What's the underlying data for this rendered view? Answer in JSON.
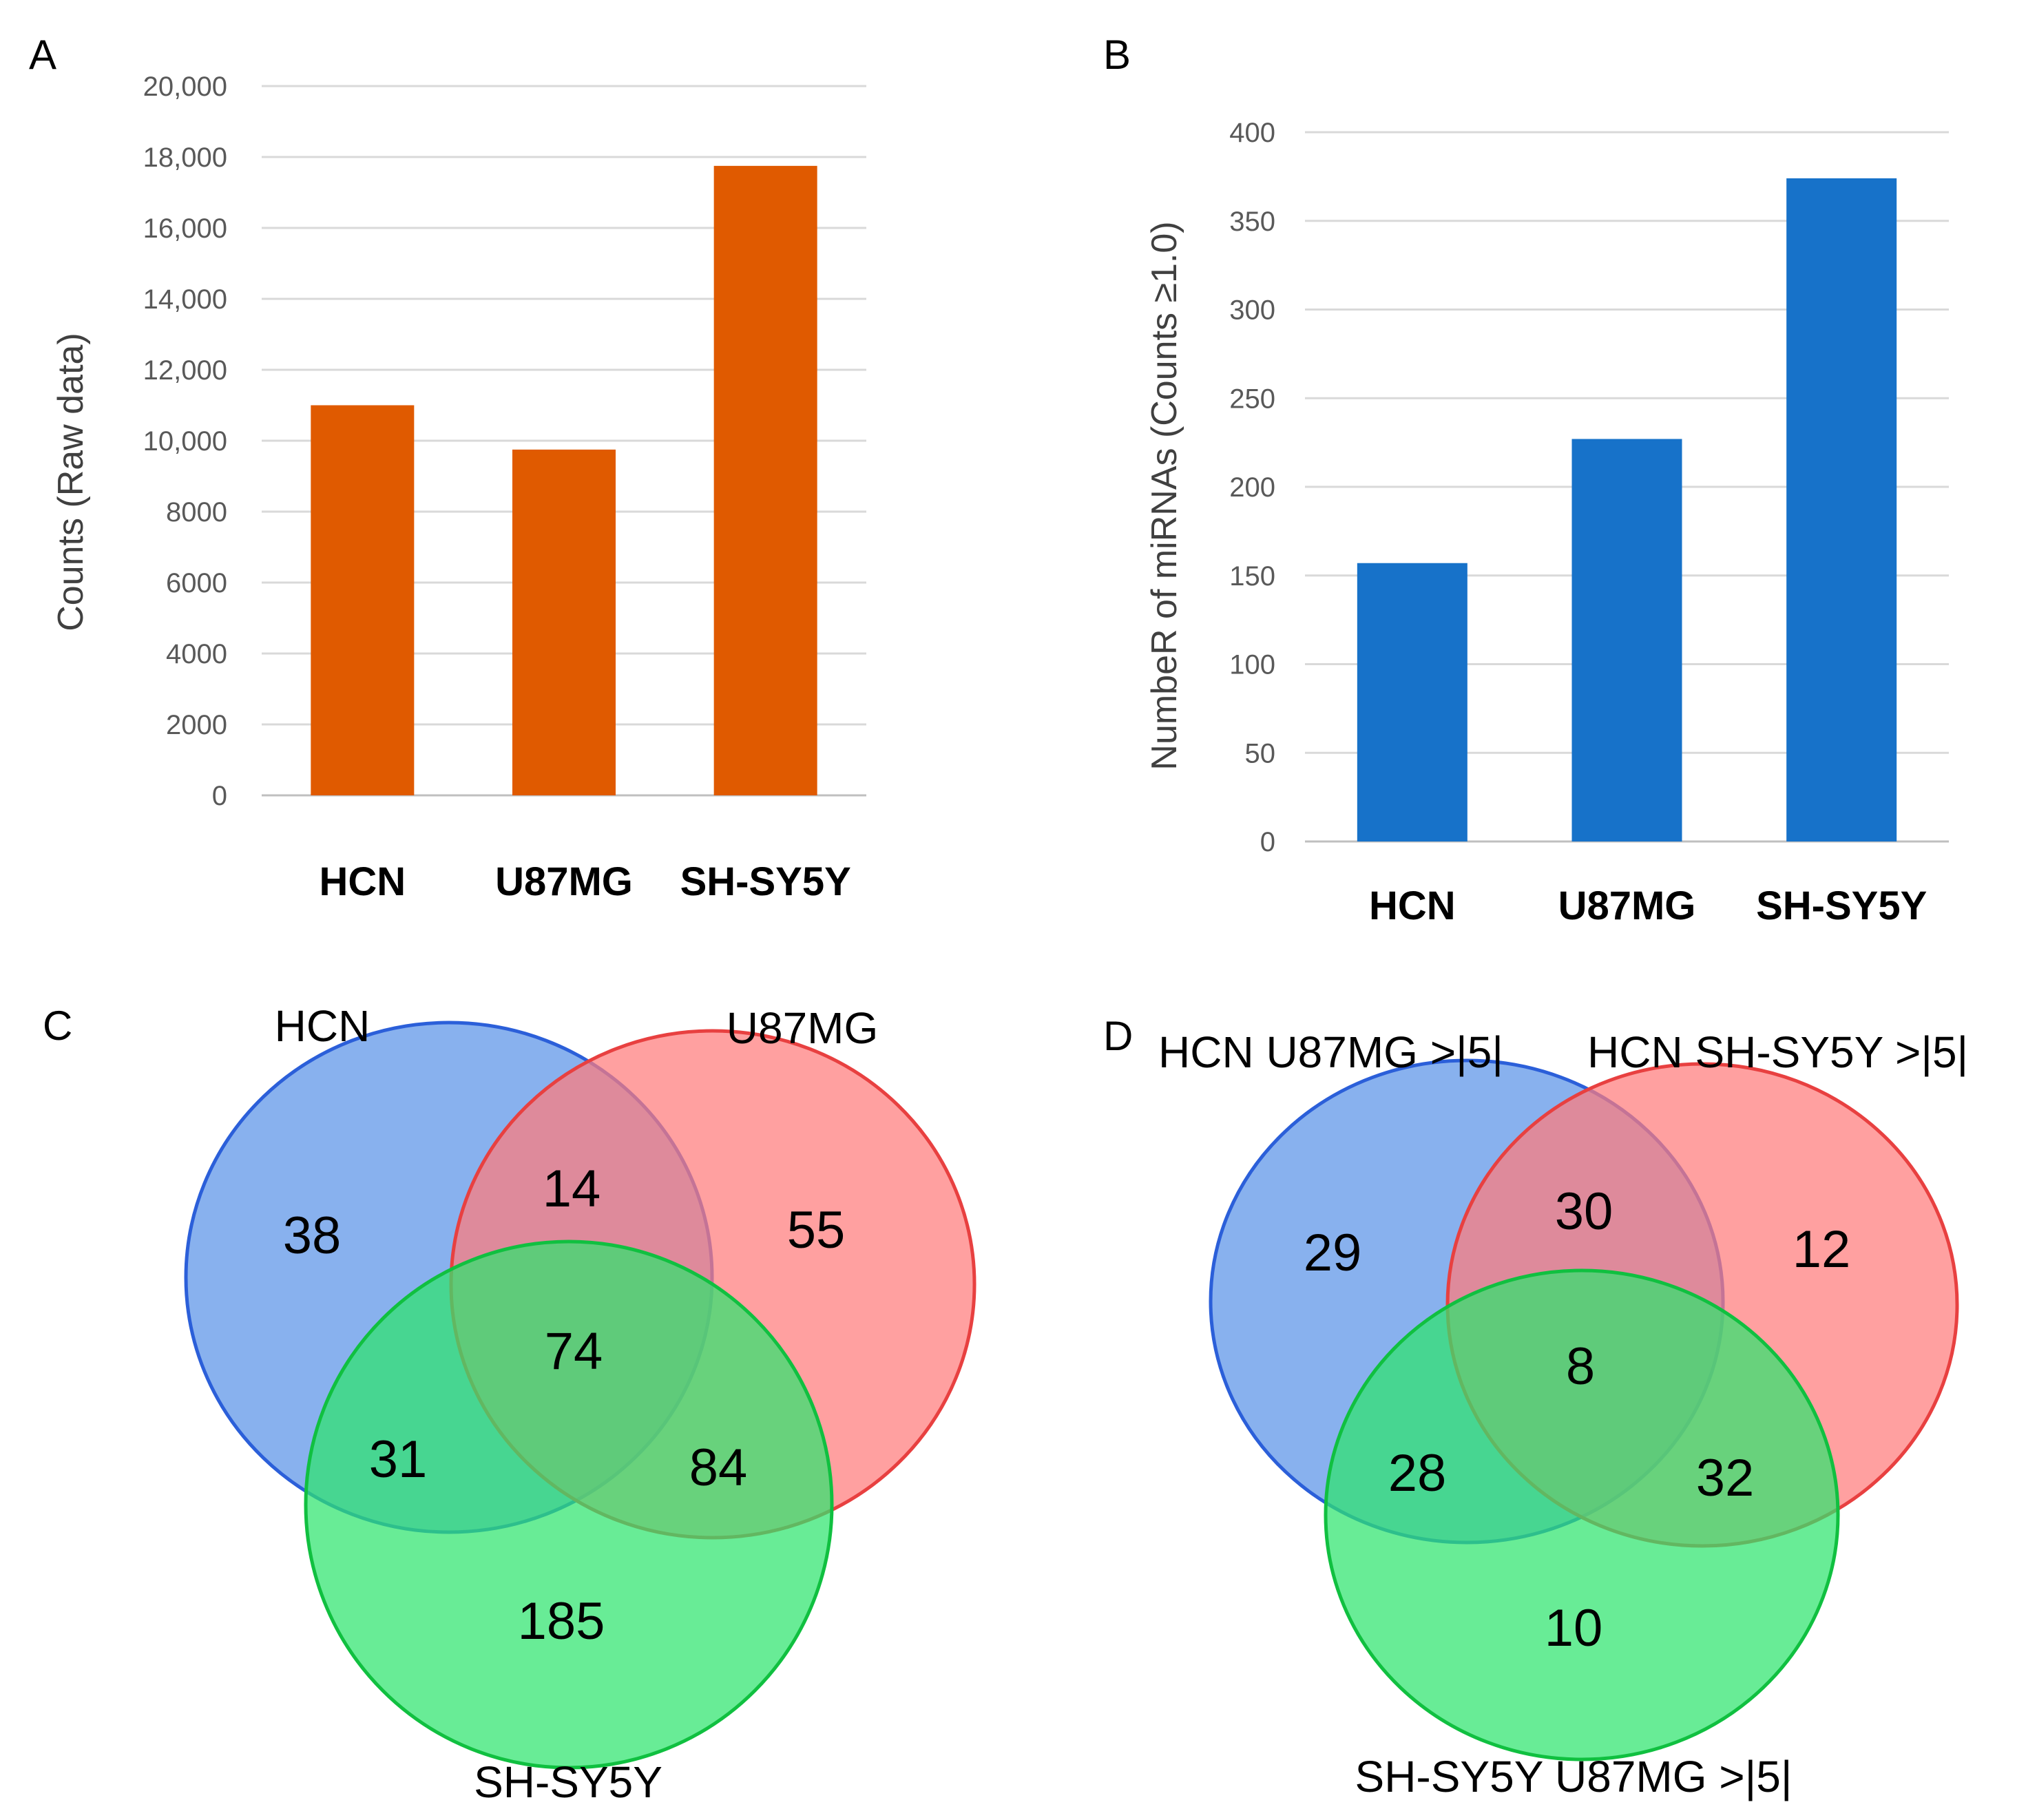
{
  "panels": {
    "a": {
      "label": "A"
    },
    "b": {
      "label": "B"
    },
    "c": {
      "label": "C"
    },
    "d": {
      "label": "D"
    }
  },
  "chart_data": [
    {
      "id": "a",
      "type": "bar",
      "categories": [
        "HCN",
        "U87MG",
        "SH-SY5Y"
      ],
      "values": [
        11000,
        9750,
        17750
      ],
      "ylabel": "Counts (Raw data)",
      "ylim": [
        0,
        20000
      ],
      "yticks": [
        0,
        2000,
        4000,
        6000,
        8000,
        10000,
        12000,
        14000,
        16000,
        18000,
        20000
      ],
      "ytick_labels": [
        "0",
        "2000",
        "4000",
        "6000",
        "8000",
        "10,000",
        "12,000",
        "14,000",
        "16,000",
        "18,000",
        "20,000"
      ],
      "color": "#e05a00",
      "grid": true
    },
    {
      "id": "b",
      "type": "bar",
      "categories": [
        "HCN",
        "U87MG",
        "SH-SY5Y"
      ],
      "values": [
        157,
        227,
        374
      ],
      "ylabel": "NumbeR of miRNAs (Counts ≥1.0)",
      "ylim": [
        0,
        400
      ],
      "yticks": [
        0,
        50,
        100,
        150,
        200,
        250,
        300,
        350,
        400
      ],
      "ytick_labels": [
        "0",
        "50",
        "100",
        "150",
        "200",
        "250",
        "300",
        "350",
        "400"
      ],
      "color": "#1772c9",
      "grid": true
    }
  ],
  "venn_c": {
    "sets": [
      "HCN",
      "U87MG",
      "SH-SY5Y"
    ],
    "regions": {
      "only_1": "38",
      "only_2": "55",
      "only_3": "185",
      "1_2": "14",
      "1_3": "31",
      "2_3": "84",
      "all": "74"
    }
  },
  "venn_d": {
    "sets": [
      "HCN U87MG >|5|",
      "HCN SH-SY5Y >|5|",
      "SH-SY5Y U87MG >|5|"
    ],
    "regions": {
      "only_1": "29",
      "only_2": "12",
      "only_3": "10",
      "1_2": "30",
      "1_3": "28",
      "2_3": "32",
      "all": "8"
    }
  },
  "colors": {
    "set1_fill": "#6a9eea",
    "set1_stroke": "#2b5fd9",
    "set2_fill": "#ff7b7b",
    "set2_stroke": "#e84040",
    "set3_fill": "#2ee46e",
    "set3_stroke": "#10c040"
  }
}
